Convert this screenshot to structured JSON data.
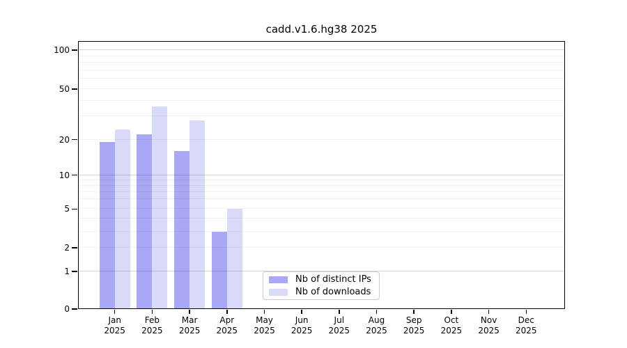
{
  "chart_data": {
    "type": "bar",
    "title": "cadd.v1.6.hg38 2025",
    "categories": [
      {
        "month": "Jan",
        "year": "2025"
      },
      {
        "month": "Feb",
        "year": "2025"
      },
      {
        "month": "Mar",
        "year": "2025"
      },
      {
        "month": "Apr",
        "year": "2025"
      },
      {
        "month": "May",
        "year": "2025"
      },
      {
        "month": "Jun",
        "year": "2025"
      },
      {
        "month": "Jul",
        "year": "2025"
      },
      {
        "month": "Aug",
        "year": "2025"
      },
      {
        "month": "Sep",
        "year": "2025"
      },
      {
        "month": "Oct",
        "year": "2025"
      },
      {
        "month": "Nov",
        "year": "2025"
      },
      {
        "month": "Dec",
        "year": "2025"
      }
    ],
    "series": [
      {
        "name": "Nb of distinct IPs",
        "color": "#a8a8f5",
        "values": [
          19,
          22,
          16,
          3,
          0,
          0,
          0,
          0,
          0,
          0,
          0,
          0
        ]
      },
      {
        "name": "Nb of downloads",
        "color": "#d9d9f8",
        "values": [
          24,
          36,
          28,
          5,
          0,
          0,
          0,
          0,
          0,
          0,
          0,
          0
        ]
      }
    ],
    "y_axis": {
      "scale": "symlog-like",
      "ticks": [
        0,
        1,
        2,
        5,
        10,
        20,
        50,
        100
      ],
      "decade_gridlines": [
        1,
        10,
        100
      ],
      "minor_gridlines": [
        3,
        4,
        6,
        7,
        8,
        9,
        30,
        40,
        60,
        70,
        80,
        90
      ],
      "range": [
        0,
        110
      ],
      "grid": true
    },
    "scale_anchors": [
      [
        1,
        0.1403
      ],
      [
        2,
        0.2286
      ],
      [
        3,
        0.2883
      ],
      [
        4,
        0.3377
      ],
      [
        5,
        0.374
      ],
      [
        6,
        0.4104
      ],
      [
        7,
        0.438
      ],
      [
        8,
        0.4616
      ],
      [
        9,
        0.4824
      ],
      [
        10,
        0.5013
      ],
      [
        20,
        0.6338
      ],
      [
        30,
        0.7208
      ],
      [
        40,
        0.7784
      ],
      [
        50,
        0.8234
      ],
      [
        60,
        0.8616
      ],
      [
        70,
        0.894
      ],
      [
        80,
        0.922
      ],
      [
        90,
        0.9465
      ],
      [
        100,
        0.9688
      ]
    ],
    "legend": {
      "position": "lower-center"
    },
    "xlabel": "",
    "ylabel": ""
  }
}
